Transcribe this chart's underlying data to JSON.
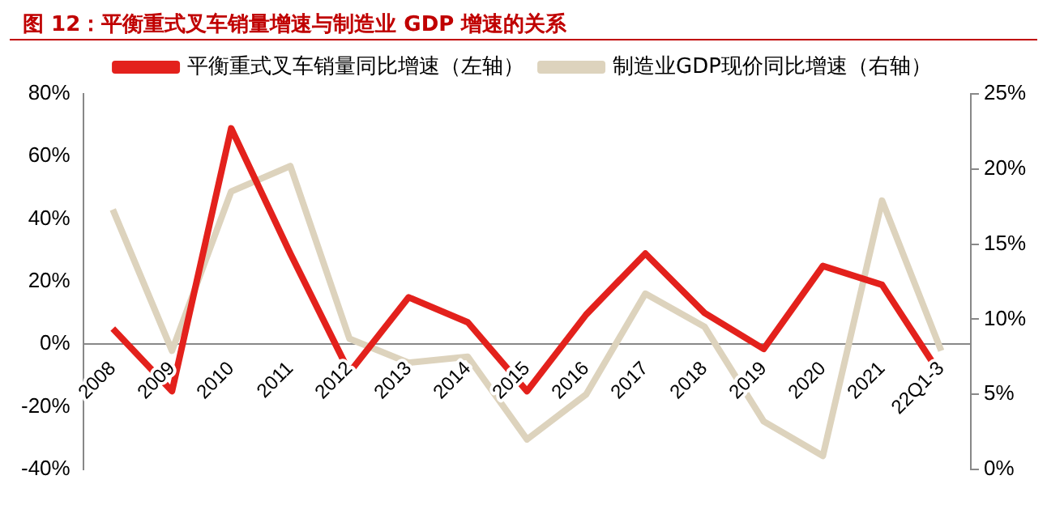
{
  "chart_data": {
    "type": "line",
    "title": "图 12：平衡重式叉车销量增速与制造业 GDP 增速的关系",
    "categories": [
      "2008",
      "2009",
      "2010",
      "2011",
      "2012",
      "2013",
      "2014",
      "2015",
      "2016",
      "2017",
      "2018",
      "2019",
      "2020",
      "2021",
      "22Q1-3"
    ],
    "series": [
      {
        "name": "平衡重式叉车销量同比增速（左轴）",
        "color": "#e3211c",
        "values": [
          5,
          -15,
          69,
          29,
          -9,
          15,
          7,
          -15,
          9.5,
          29,
          10,
          -1.5,
          25,
          19,
          -10
        ]
      },
      {
        "name": "制造业GDP现价同比增速（右轴）",
        "color": "#ddd3bd",
        "axis": "y2",
        "values": [
          17.3,
          7.9,
          18.5,
          20.2,
          8.7,
          7.1,
          7.5,
          2.0,
          5.0,
          11.7,
          9.5,
          3.2,
          0.9,
          17.9,
          7.9
        ]
      }
    ],
    "ylim": [
      -40,
      80
    ],
    "yticks": [
      {
        "value": -40,
        "label": "-40%"
      },
      {
        "value": -20,
        "label": "-20%"
      },
      {
        "value": 0,
        "label": "0%"
      },
      {
        "value": 20,
        "label": "20%"
      },
      {
        "value": 40,
        "label": "40%"
      },
      {
        "value": 60,
        "label": "60%"
      },
      {
        "value": 80,
        "label": "80%"
      }
    ],
    "y2lim": [
      0,
      25
    ],
    "y2ticks": [
      {
        "value": 0,
        "label": "0%"
      },
      {
        "value": 5,
        "label": "5%"
      },
      {
        "value": 10,
        "label": "10%"
      },
      {
        "value": 15,
        "label": "15%"
      },
      {
        "value": 20,
        "label": "20%"
      },
      {
        "value": 25,
        "label": "25%"
      }
    ],
    "legend": "top",
    "grid": false,
    "marker": "none",
    "line_style": "solid"
  }
}
